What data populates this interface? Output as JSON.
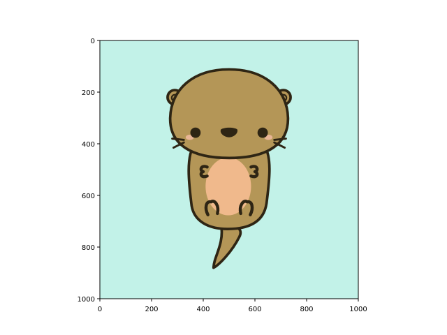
{
  "image": {
    "subject": "otter-cartoon",
    "background_color": "#c2f2e8",
    "colors": {
      "outline": "#2e2514",
      "fur": "#b49657",
      "belly": "#f0b98c",
      "cheek": "#e8b595",
      "eyes_nose": "#2e2514"
    }
  },
  "axes": {
    "x_ticks": [
      "0",
      "200",
      "400",
      "600",
      "800",
      "1000"
    ],
    "y_ticks": [
      "0",
      "200",
      "400",
      "600",
      "800",
      "1000"
    ],
    "xlim": [
      0,
      1000
    ],
    "ylim": [
      1000,
      0
    ]
  }
}
